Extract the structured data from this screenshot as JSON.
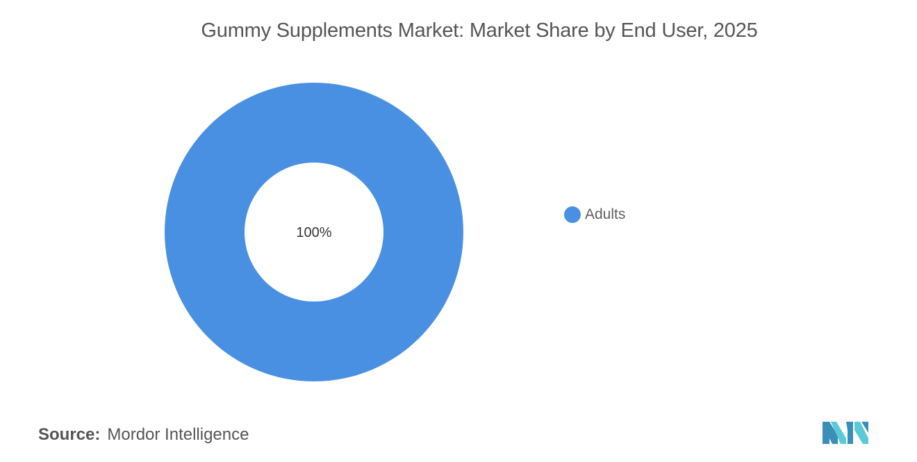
{
  "chart_data": {
    "type": "pie",
    "title": "Gummy Supplements Market: Market Share by End User, 2025",
    "donut": true,
    "slices": [
      {
        "label": "Adults",
        "value": 100,
        "display": "100%",
        "color": "#4a90e2"
      }
    ],
    "legend": {
      "placement": "right"
    }
  },
  "source": {
    "label": "Source:",
    "text": "Mordor Intelligence"
  },
  "logo": {
    "icon": "mordor-intelligence-logo",
    "colors": [
      "#3a8fb7",
      "#5cc9d6"
    ]
  }
}
